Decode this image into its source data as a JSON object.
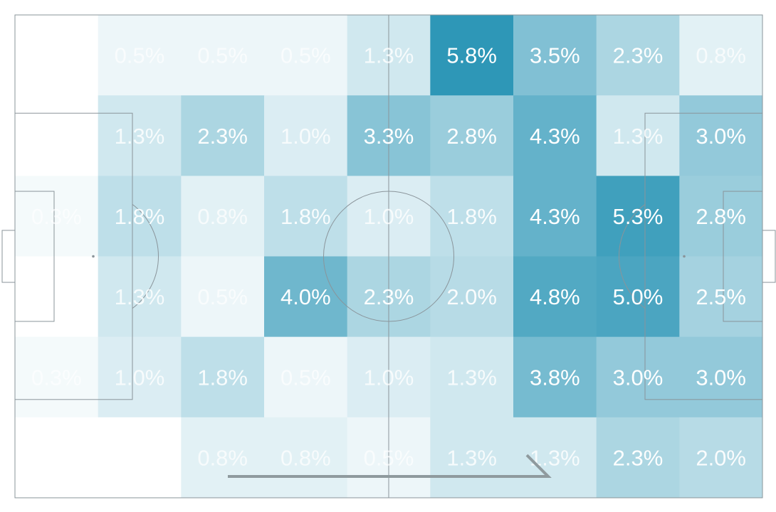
{
  "chart_data": {
    "type": "heatmap",
    "title": "",
    "xlabel": "",
    "ylabel": "",
    "columns": 9,
    "rows": 6,
    "color_scale": {
      "low": "#ffffff",
      "high": "#2e97b7",
      "vmax": 5.8
    },
    "pitch_line_color": "#8a949a",
    "values": [
      [
        0.0,
        0.5,
        0.5,
        0.5,
        1.3,
        5.8,
        3.5,
        2.3,
        0.8
      ],
      [
        0.0,
        1.3,
        2.3,
        1.0,
        3.3,
        2.8,
        4.3,
        1.3,
        3.0
      ],
      [
        0.3,
        1.8,
        0.8,
        1.8,
        1.0,
        1.8,
        4.3,
        5.3,
        2.8
      ],
      [
        0.0,
        1.3,
        0.5,
        4.0,
        2.3,
        2.0,
        4.8,
        5.0,
        2.5
      ],
      [
        0.3,
        1.0,
        1.8,
        0.5,
        1.0,
        1.3,
        3.8,
        3.0,
        3.0
      ],
      [
        0.0,
        0.0,
        0.8,
        0.8,
        0.5,
        1.3,
        1.3,
        2.3,
        2.0
      ]
    ],
    "labels": [
      [
        "",
        "0.5%",
        "0.5%",
        "0.5%",
        "1.3%",
        "5.8%",
        "3.5%",
        "2.3%",
        "0.8%"
      ],
      [
        "",
        "1.3%",
        "2.3%",
        "1.0%",
        "3.3%",
        "2.8%",
        "4.3%",
        "1.3%",
        "3.0%"
      ],
      [
        "0.3%",
        "1.8%",
        "0.8%",
        "1.8%",
        "1.0%",
        "1.8%",
        "4.3%",
        "5.3%",
        "2.8%"
      ],
      [
        "",
        "1.3%",
        "0.5%",
        "4.0%",
        "2.3%",
        "2.0%",
        "4.8%",
        "5.0%",
        "2.5%"
      ],
      [
        "0.3%",
        "1.0%",
        "1.8%",
        "0.5%",
        "1.0%",
        "1.3%",
        "3.8%",
        "3.0%",
        "3.0%"
      ],
      [
        "",
        "",
        "0.8%",
        "0.8%",
        "0.5%",
        "1.3%",
        "1.3%",
        "2.3%",
        "2.0%"
      ]
    ],
    "attack_direction": "left-to-right"
  }
}
